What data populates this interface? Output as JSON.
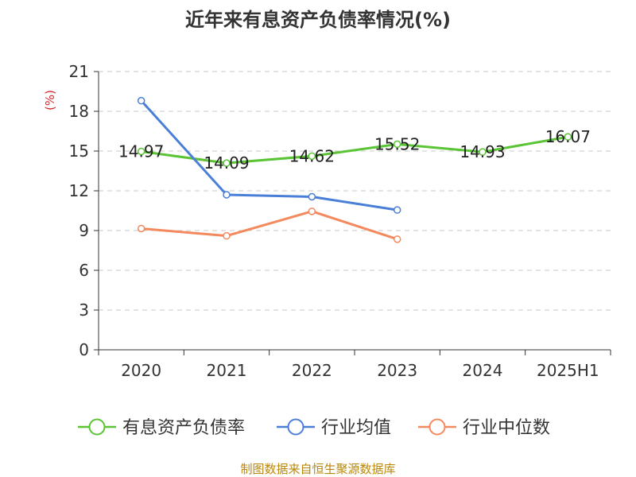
{
  "chart_data": {
    "type": "line",
    "title": "近年来有息资产负债率情况(%)",
    "ylabel": "(%)",
    "categories": [
      "2020",
      "2021",
      "2022",
      "2023",
      "2024",
      "2025H1"
    ],
    "ylim": [
      0,
      21
    ],
    "yticks": [
      0,
      3,
      6,
      9,
      12,
      15,
      18,
      21
    ],
    "grid": true,
    "legend_position": "bottom",
    "series": [
      {
        "name": "有息资产负债率",
        "color": "#5ac435",
        "values": [
          14.97,
          14.09,
          14.62,
          15.52,
          14.93,
          16.07
        ],
        "labels": [
          "14.97",
          "14.09",
          "14.62",
          "15.52",
          "14.93",
          "16.07"
        ]
      },
      {
        "name": "行业均值",
        "color": "#4a7fd8",
        "values": [
          18.8,
          11.7,
          11.55,
          10.55,
          null,
          null
        ]
      },
      {
        "name": "行业中位数",
        "color": "#f4895d",
        "values": [
          9.15,
          8.6,
          10.45,
          8.35,
          null,
          null
        ]
      }
    ],
    "source": "制图数据来自恒生聚源数据库"
  }
}
